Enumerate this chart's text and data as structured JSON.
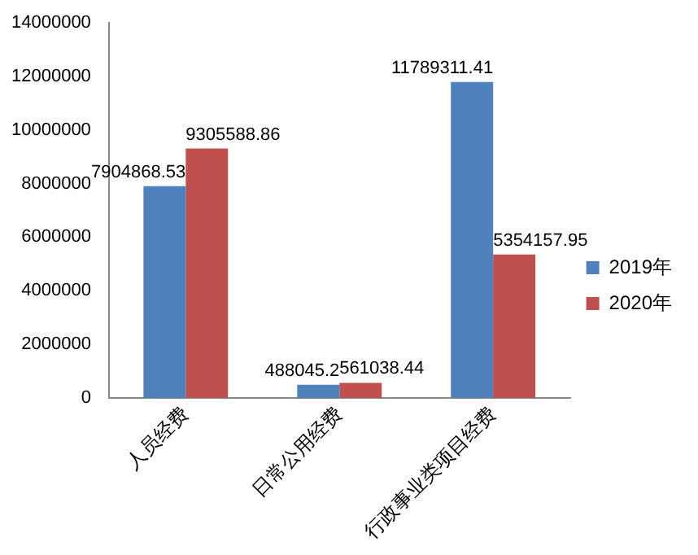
{
  "chart_data": {
    "type": "bar",
    "categories": [
      "人员经费",
      "日常公用经费",
      "行政事业类项目经费"
    ],
    "series": [
      {
        "name": "2019年",
        "color": "#4f81bd",
        "values": [
          7904868.53,
          488045.2,
          11789311.41
        ]
      },
      {
        "name": "2020年",
        "color": "#c0504d",
        "values": [
          9305588.86,
          561038.44,
          5354157.95
        ]
      }
    ],
    "ylim": [
      0,
      14000000
    ],
    "yticks": [
      0,
      2000000,
      4000000,
      6000000,
      8000000,
      10000000,
      12000000,
      14000000
    ],
    "grid": false,
    "legend": "right",
    "data_labels": true
  }
}
